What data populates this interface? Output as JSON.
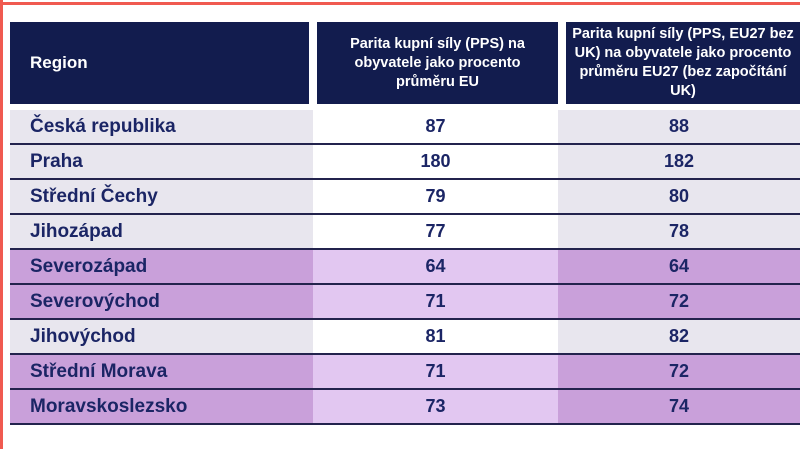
{
  "chart_data": {
    "type": "table",
    "columns": [
      "Region",
      "Parita kupní síly (PPS) na obyvatele jako procento průměru EU",
      "Parita kupní síly (PPS, EU27 bez UK) na obyvatele jako procento průměru EU27 (bez započítání UK)"
    ],
    "rows": [
      {
        "region": "Česká republika",
        "pps_eu": "87",
        "pps_eu27": "88",
        "highlighted": false
      },
      {
        "region": "Praha",
        "pps_eu": "180",
        "pps_eu27": "182",
        "highlighted": false
      },
      {
        "region": "Střední Čechy",
        "pps_eu": "79",
        "pps_eu27": "80",
        "highlighted": false
      },
      {
        "region": "Jihozápad",
        "pps_eu": "77",
        "pps_eu27": "78",
        "highlighted": false
      },
      {
        "region": "Severozápad",
        "pps_eu": "64",
        "pps_eu27": "64",
        "highlighted": true
      },
      {
        "region": "Severovýchod",
        "pps_eu": "71",
        "pps_eu27": "72",
        "highlighted": true
      },
      {
        "region": "Jihovýchod",
        "pps_eu": "81",
        "pps_eu27": "82",
        "highlighted": false
      },
      {
        "region": "Střední Morava",
        "pps_eu": "71",
        "pps_eu27": "72",
        "highlighted": true
      },
      {
        "region": "Moravskoslezsko",
        "pps_eu": "73",
        "pps_eu27": "74",
        "highlighted": true
      }
    ]
  },
  "colors": {
    "accent_red": "#f05a50",
    "header_navy": "#121c4e",
    "text_navy": "#1b2565",
    "row_light": "#e8e6ee",
    "row_light_mid": "#ffffff",
    "row_highlight": "#c9a0da",
    "row_highlight_mid": "#e2c7f1",
    "divider_navy": "#23234d"
  }
}
